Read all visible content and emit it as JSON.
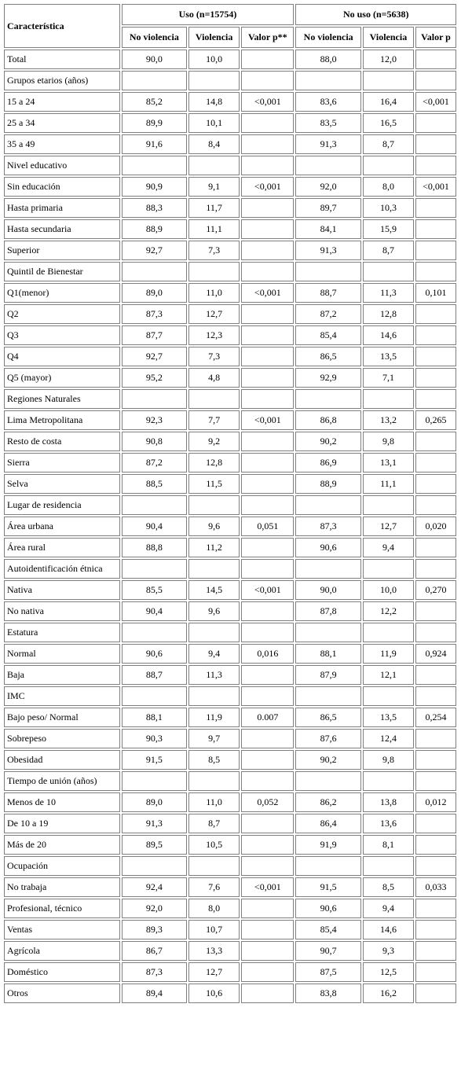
{
  "header": {
    "characteristic": "Característica",
    "group_use": "Uso (n=15754)",
    "group_nouse": "No uso (n=5638)",
    "sub": [
      "No violencia",
      "Violencia",
      "Valor p**",
      "No violencia",
      "Violencia",
      "Valor p"
    ]
  },
  "rows": [
    [
      "Total",
      "90,0",
      "10,0",
      "",
      "88,0",
      "12,0",
      ""
    ],
    [
      "Grupos etarios (años)",
      "",
      "",
      "",
      "",
      "",
      ""
    ],
    [
      "15 a 24",
      "85,2",
      "14,8",
      "<0,001",
      "83,6",
      "16,4",
      "<0,001"
    ],
    [
      "25 a 34",
      "89,9",
      "10,1",
      "",
      "83,5",
      "16,5",
      ""
    ],
    [
      "35 a 49",
      "91,6",
      "8,4",
      "",
      "91,3",
      "8,7",
      ""
    ],
    [
      "Nivel educativo",
      "",
      "",
      "",
      "",
      "",
      ""
    ],
    [
      "Sin educación",
      "90,9",
      "9,1",
      "<0,001",
      "92,0",
      "8,0",
      "<0,001"
    ],
    [
      "Hasta primaria",
      "88,3",
      "11,7",
      "",
      "89,7",
      "10,3",
      ""
    ],
    [
      "Hasta secundaria",
      "88,9",
      "11,1",
      "",
      "84,1",
      "15,9",
      ""
    ],
    [
      "Superior",
      "92,7",
      "7,3",
      "",
      "91,3",
      "8,7",
      ""
    ],
    [
      "Quintil de Bienestar",
      "",
      "",
      "",
      "",
      "",
      ""
    ],
    [
      "Q1(menor)",
      "89,0",
      "11,0",
      "<0,001",
      "88,7",
      "11,3",
      "0,101"
    ],
    [
      "Q2",
      "87,3",
      "12,7",
      "",
      "87,2",
      "12,8",
      ""
    ],
    [
      "Q3",
      "87,7",
      "12,3",
      "",
      "85,4",
      "14,6",
      ""
    ],
    [
      "Q4",
      "92,7",
      "7,3",
      "",
      "86,5",
      "13,5",
      ""
    ],
    [
      "Q5 (mayor)",
      "95,2",
      "4,8",
      "",
      "92,9",
      "7,1",
      ""
    ],
    [
      "Regiones Naturales",
      "",
      "",
      "",
      "",
      "",
      ""
    ],
    [
      "Lima Metropolitana",
      "92,3",
      "7,7",
      "<0,001",
      "86,8",
      "13,2",
      "0,265"
    ],
    [
      "Resto de costa",
      "90,8",
      "9,2",
      "",
      "90,2",
      "9,8",
      ""
    ],
    [
      "Sierra",
      "87,2",
      "12,8",
      "",
      "86,9",
      "13,1",
      ""
    ],
    [
      "Selva",
      "88,5",
      "11,5",
      "",
      "88,9",
      "11,1",
      ""
    ],
    [
      "Lugar de residencia",
      "",
      "",
      "",
      "",
      "",
      ""
    ],
    [
      "Área urbana",
      "90,4",
      "9,6",
      "0,051",
      "87,3",
      "12,7",
      "0,020"
    ],
    [
      "Área rural",
      "88,8",
      "11,2",
      "",
      "90,6",
      "9,4",
      ""
    ],
    [
      "Autoidentificación étnica",
      "",
      "",
      "",
      "",
      "",
      ""
    ],
    [
      "Nativa",
      "85,5",
      "14,5",
      "<0,001",
      "90,0",
      "10,0",
      "0,270"
    ],
    [
      "No nativa",
      "90,4",
      "9,6",
      "",
      "87,8",
      "12,2",
      ""
    ],
    [
      "Estatura",
      "",
      "",
      "",
      "",
      "",
      ""
    ],
    [
      "Normal",
      "90,6",
      "9,4",
      "0,016",
      "88,1",
      "11,9",
      "0,924"
    ],
    [
      "Baja",
      "88,7",
      "11,3",
      "",
      "87,9",
      "12,1",
      ""
    ],
    [
      "IMC",
      "",
      "",
      "",
      "",
      "",
      ""
    ],
    [
      "Bajo peso/ Normal",
      "88,1",
      "11,9",
      "0.007",
      "86,5",
      "13,5",
      "0,254"
    ],
    [
      "Sobrepeso",
      "90,3",
      "9,7",
      "",
      "87,6",
      "12,4",
      ""
    ],
    [
      "Obesidad",
      "91,5",
      "8,5",
      "",
      "90,2",
      "9,8",
      ""
    ],
    [
      "Tiempo de unión (años)",
      "",
      "",
      "",
      "",
      "",
      ""
    ],
    [
      "Menos de 10",
      "89,0",
      "11,0",
      "0,052",
      "86,2",
      "13,8",
      "0,012"
    ],
    [
      "De 10 a 19",
      "91,3",
      "8,7",
      "",
      "86,4",
      "13,6",
      ""
    ],
    [
      "Más de 20",
      "89,5",
      "10,5",
      "",
      "91,9",
      "8,1",
      ""
    ],
    [
      "Ocupación",
      "",
      "",
      "",
      "",
      "",
      ""
    ],
    [
      "No trabaja",
      "92,4",
      "7,6",
      "<0,001",
      "91,5",
      "8,5",
      "0,033"
    ],
    [
      "Profesional, técnico",
      "92,0",
      "8,0",
      "",
      "90,6",
      "9,4",
      ""
    ],
    [
      "Ventas",
      "89,3",
      "10,7",
      "",
      "85,4",
      "14,6",
      ""
    ],
    [
      "Agrícola",
      "86,7",
      "13,3",
      "",
      "90,7",
      "9,3",
      ""
    ],
    [
      "Doméstico",
      "87,3",
      "12,7",
      "",
      "87,5",
      "12,5",
      ""
    ],
    [
      "Otros",
      "89,4",
      "10,6",
      "",
      "83,8",
      "16,2",
      ""
    ]
  ]
}
